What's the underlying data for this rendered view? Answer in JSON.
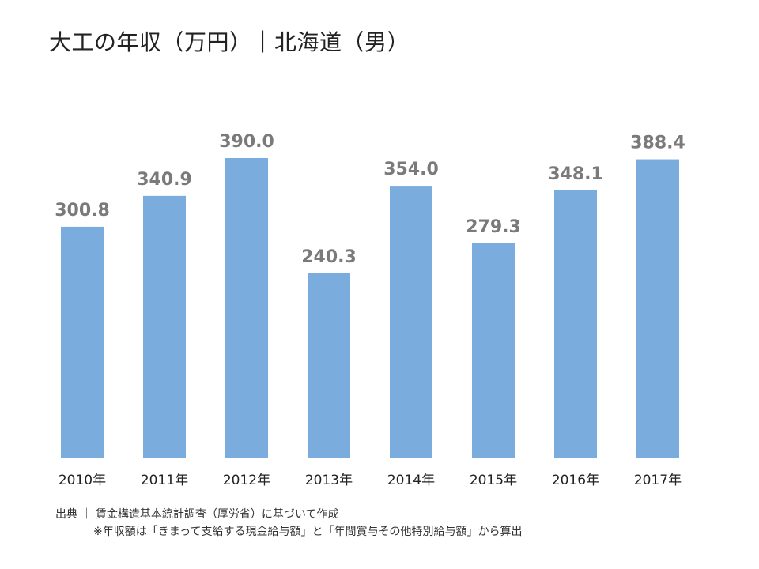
{
  "title": "大工の年収（万円）｜北海道（男）",
  "chart_data": {
    "type": "bar",
    "title": "大工の年収（万円）｜北海道（男）",
    "categories": [
      "2010年",
      "2011年",
      "2012年",
      "2013年",
      "2014年",
      "2015年",
      "2016年",
      "2017年"
    ],
    "values": [
      300.8,
      340.9,
      390.0,
      240.3,
      354.0,
      279.3,
      348.1,
      388.4
    ],
    "value_labels": [
      "300.8",
      "340.9",
      "390.0",
      "240.3",
      "354.0",
      "279.3",
      "348.1",
      "388.4"
    ],
    "xlabel": "",
    "ylabel": "",
    "ylim": [
      0,
      400
    ],
    "grid": false,
    "legend": "none",
    "bar_color": "#7aaddd",
    "label_color": "#7a7a7a"
  },
  "footer": {
    "source": "出典 ｜ 賃金構造基本統計調査（厚労省）に基づいて作成",
    "note": "※年収額は「きまって支給する現金給与額」と「年間賞与その他特別給与額」から算出"
  }
}
